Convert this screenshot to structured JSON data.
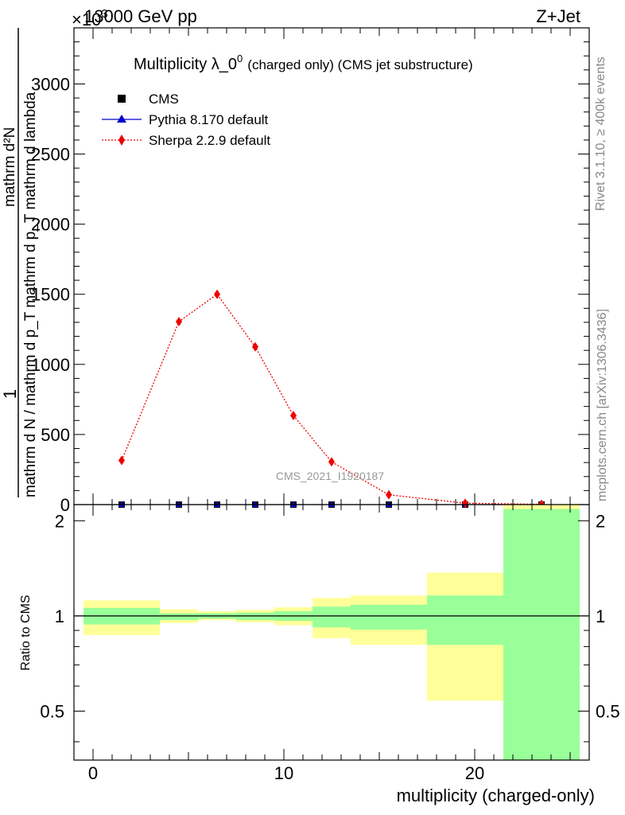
{
  "header": {
    "energy": "13000 GeV pp",
    "process": "Z+Jet",
    "exponent": "×10",
    "exponent_power": "3"
  },
  "side": {
    "rivet": "Rivet 3.1.10, ≥ 400k events",
    "mcplots": "mcplots.cern.ch [arXiv:1306.3436]"
  },
  "colors": {
    "cms": "#000000",
    "pythia": "#0000cc",
    "sherpa": "#ee0000",
    "band_outer": "#ffff99",
    "band_inner": "#99ff99"
  },
  "chart_data": [
    {
      "type": "line",
      "title": "Multiplicity λ_0^0 (charged only) (CMS jet substructure)",
      "title_main": "Multiplicity λ_0",
      "title_sup": "0",
      "title_tail": "(charged only) (CMS jet substructure)",
      "ylabel_numerator": "1",
      "ylabel_main": "mathrm d N / mathrm d p_T mathrm d p_T mathrm d lambda",
      "ylabel_over": "mathrm d²N",
      "watermark": "CMS_2021_I1920187",
      "y_multiplier": 1000,
      "xlim": [
        -1,
        26
      ],
      "ylim": [
        0,
        3400
      ],
      "yticks": [
        0,
        500,
        1000,
        1500,
        2000,
        2500,
        3000
      ],
      "ytick_labels": [
        "0",
        "500",
        "1000",
        "1500",
        "2000",
        "2500",
        "3000"
      ],
      "legend_position": "top-left",
      "series": [
        {
          "name": "CMS",
          "marker": "square",
          "x": [
            1.5,
            4.5,
            6.5,
            8.5,
            10.5,
            12.5,
            15.5,
            19.5,
            23.5
          ],
          "y": [
            0,
            0,
            0,
            0,
            0,
            0,
            0,
            0,
            0
          ]
        },
        {
          "name": "Pythia 8.170 default",
          "marker": "triangle",
          "x": [
            1.5,
            4.5,
            6.5,
            8.5,
            10.5,
            12.5,
            15.5,
            19.5,
            23.5
          ],
          "y": [
            0,
            0,
            0,
            0,
            0,
            0,
            0,
            0,
            0
          ]
        },
        {
          "name": "Sherpa 2.2.9 default",
          "marker": "diamond",
          "x": [
            1.5,
            4.5,
            6.5,
            8.5,
            10.5,
            12.5,
            15.5,
            19.5,
            23.5
          ],
          "y": [
            315,
            1305,
            1500,
            1125,
            635,
            305,
            70,
            10,
            2
          ]
        }
      ]
    },
    {
      "type": "area",
      "ylabel": "Ratio to CMS",
      "xlabel": "multiplicity (charged-only)",
      "xlim": [
        -1,
        26
      ],
      "ylim": [
        0.35,
        2.25
      ],
      "xticks": [
        0,
        10,
        20
      ],
      "xtick_labels": [
        "0",
        "10",
        "20"
      ],
      "yticks": [
        0.5,
        1,
        2
      ],
      "ytick_labels": [
        "0.5",
        "1",
        "2"
      ],
      "reference_line": 1,
      "bins": [
        {
          "x0": -0.5,
          "x1": 3.5,
          "inner": [
            0.94,
            1.06
          ],
          "outer": [
            0.87,
            1.12
          ]
        },
        {
          "x0": 3.5,
          "x1": 5.5,
          "inner": [
            0.97,
            1.02
          ],
          "outer": [
            0.95,
            1.05
          ]
        },
        {
          "x0": 5.5,
          "x1": 7.5,
          "inner": [
            0.98,
            1.02
          ],
          "outer": [
            0.97,
            1.035
          ]
        },
        {
          "x0": 7.5,
          "x1": 9.5,
          "inner": [
            0.97,
            1.025
          ],
          "outer": [
            0.955,
            1.045
          ]
        },
        {
          "x0": 9.5,
          "x1": 11.5,
          "inner": [
            0.965,
            1.035
          ],
          "outer": [
            0.935,
            1.065
          ]
        },
        {
          "x0": 11.5,
          "x1": 13.5,
          "inner": [
            0.92,
            1.07
          ],
          "outer": [
            0.85,
            1.14
          ]
        },
        {
          "x0": 13.5,
          "x1": 17.5,
          "inner": [
            0.905,
            1.085
          ],
          "outer": [
            0.81,
            1.16
          ]
        },
        {
          "x0": 17.5,
          "x1": 21.5,
          "inner": [
            0.81,
            1.16
          ],
          "outer": [
            0.54,
            1.37
          ]
        },
        {
          "x0": 21.5,
          "x1": 25.5,
          "inner": [
            0.33,
            2.18
          ],
          "outer": [
            0.33,
            2.25
          ]
        }
      ]
    }
  ]
}
